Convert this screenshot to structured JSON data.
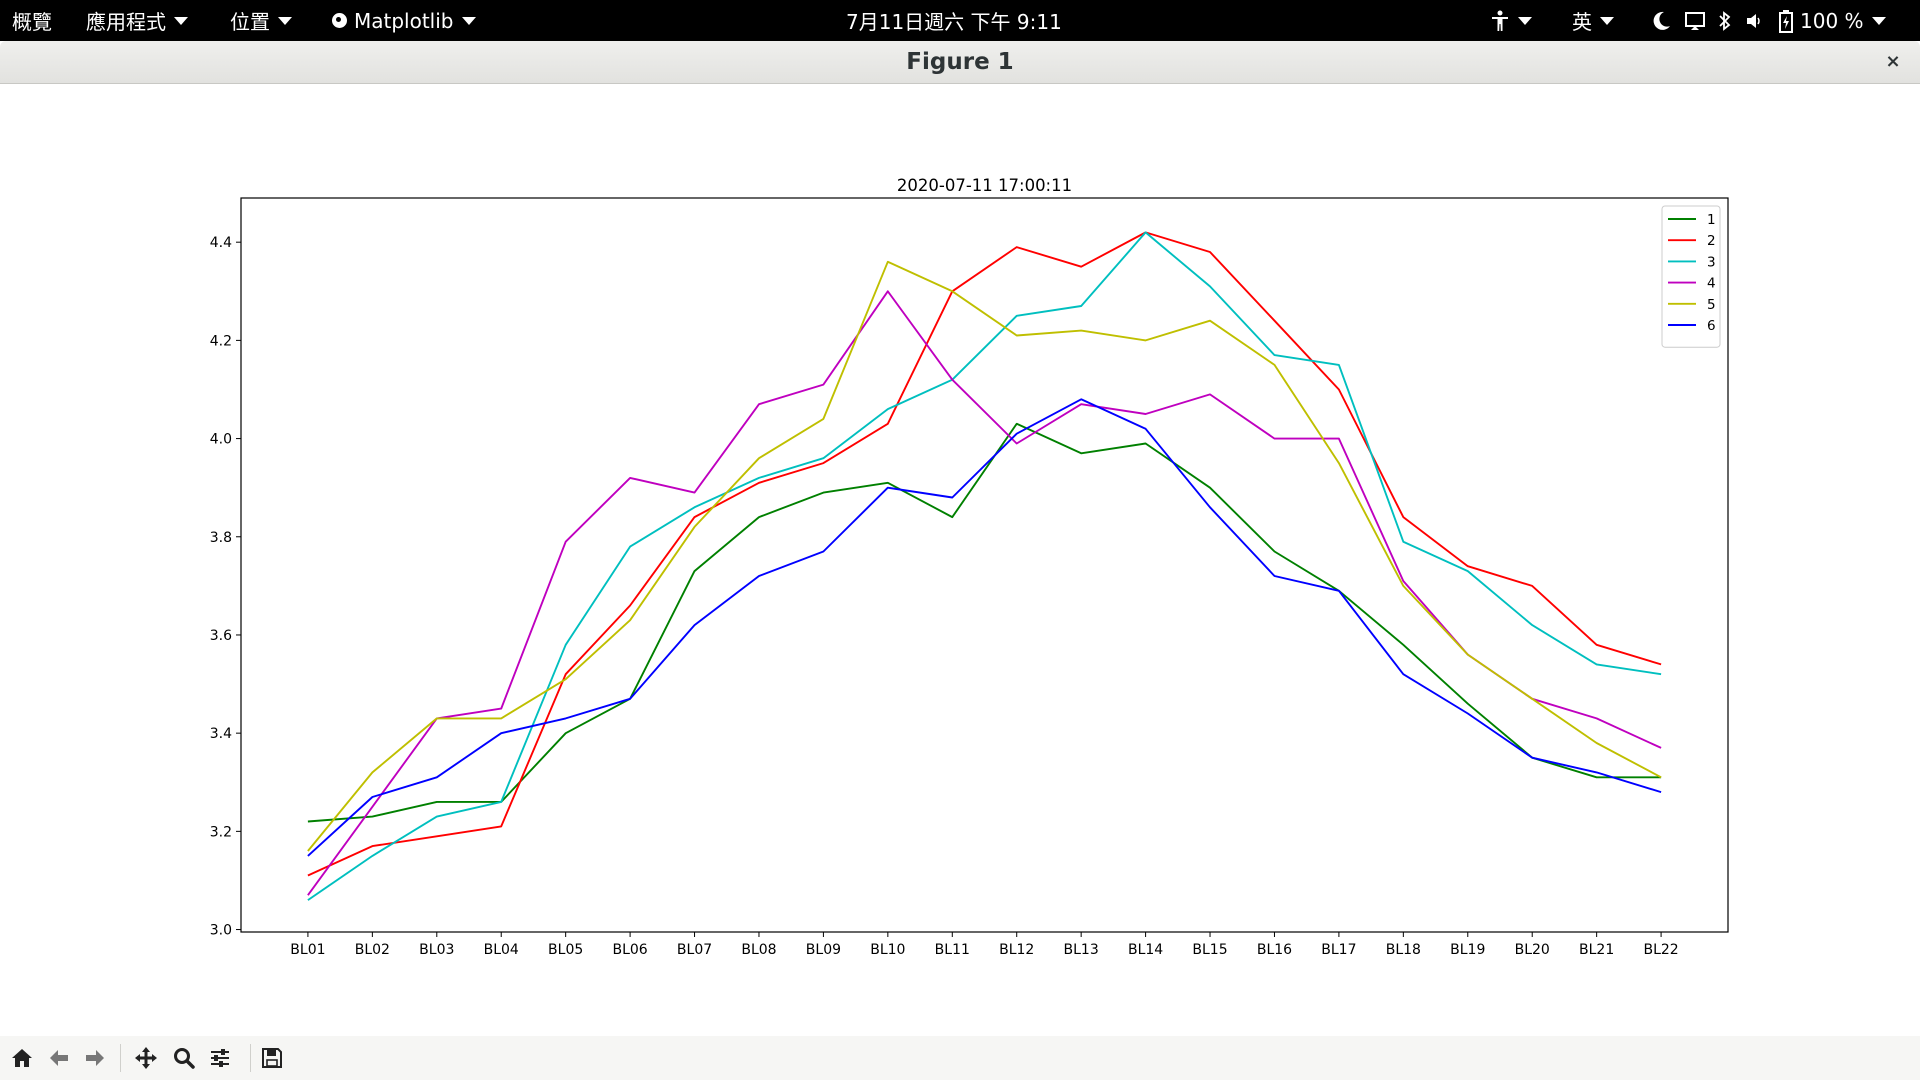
{
  "topbar": {
    "activities": "概覽",
    "applications": "應用程式",
    "places": "位置",
    "app_name": "Matplotlib",
    "clock": "7月11日週六  下午 9:11",
    "input_method": "英",
    "battery": "100 %"
  },
  "window": {
    "title": "Figure 1",
    "close": "×"
  },
  "chart_data": {
    "type": "line",
    "title": "2020-07-11 17:00:11",
    "xlabel": "",
    "ylabel": "",
    "categories": [
      "BL01",
      "BL02",
      "BL03",
      "BL04",
      "BL05",
      "BL06",
      "BL07",
      "BL08",
      "BL09",
      "BL10",
      "BL11",
      "BL12",
      "BL13",
      "BL14",
      "BL15",
      "BL16",
      "BL17",
      "BL18",
      "BL19",
      "BL20",
      "BL21",
      "BL22"
    ],
    "ylim": [
      2.995,
      4.49
    ],
    "yticks": [
      3.0,
      3.2,
      3.4,
      3.6,
      3.8,
      4.0,
      4.2,
      4.4
    ],
    "ytick_labels": [
      "3.0",
      "3.2",
      "3.4",
      "3.6",
      "3.8",
      "4.0",
      "4.2",
      "4.4"
    ],
    "grid": false,
    "legend_position": "top-right",
    "series": [
      {
        "name": "1",
        "color": "#008000",
        "values": [
          3.22,
          3.23,
          3.26,
          3.26,
          3.4,
          3.47,
          3.73,
          3.84,
          3.89,
          3.91,
          3.84,
          4.03,
          3.97,
          3.99,
          3.9,
          3.77,
          3.69,
          3.58,
          3.46,
          3.35,
          3.31,
          3.31
        ]
      },
      {
        "name": "2",
        "color": "#ff0000",
        "values": [
          3.11,
          3.17,
          3.19,
          3.21,
          3.52,
          3.66,
          3.84,
          3.91,
          3.95,
          4.03,
          4.3,
          4.39,
          4.35,
          4.42,
          4.38,
          4.24,
          4.1,
          3.84,
          3.74,
          3.7,
          3.58,
          3.54
        ]
      },
      {
        "name": "3",
        "color": "#00bfbf",
        "values": [
          3.06,
          3.15,
          3.23,
          3.26,
          3.58,
          3.78,
          3.86,
          3.92,
          3.96,
          4.06,
          4.12,
          4.25,
          4.27,
          4.42,
          4.31,
          4.17,
          4.15,
          3.79,
          3.73,
          3.62,
          3.54,
          3.52
        ]
      },
      {
        "name": "4",
        "color": "#bf00bf",
        "values": [
          3.07,
          3.25,
          3.43,
          3.45,
          3.79,
          3.92,
          3.89,
          4.07,
          4.11,
          4.3,
          4.12,
          3.99,
          4.07,
          4.05,
          4.09,
          4.0,
          4.0,
          3.71,
          3.56,
          3.47,
          3.43,
          3.37
        ]
      },
      {
        "name": "5",
        "color": "#bfbf00",
        "values": [
          3.16,
          3.32,
          3.43,
          3.43,
          3.51,
          3.63,
          3.82,
          3.96,
          4.04,
          4.36,
          4.3,
          4.21,
          4.22,
          4.2,
          4.24,
          4.15,
          3.95,
          3.7,
          3.56,
          3.47,
          3.38,
          3.31
        ]
      },
      {
        "name": "6",
        "color": "#0000ff",
        "values": [
          3.15,
          3.27,
          3.31,
          3.4,
          3.43,
          3.47,
          3.62,
          3.72,
          3.77,
          3.9,
          3.88,
          4.01,
          4.08,
          4.02,
          3.86,
          3.72,
          3.69,
          3.52,
          3.44,
          3.35,
          3.32,
          3.28
        ]
      }
    ]
  },
  "toolbar": {
    "home": "home-icon",
    "back": "arrow-left-icon",
    "forward": "arrow-right-icon",
    "pan": "move-icon",
    "zoom": "magnifier-icon",
    "configure": "sliders-icon",
    "save": "floppy-disk-icon"
  }
}
